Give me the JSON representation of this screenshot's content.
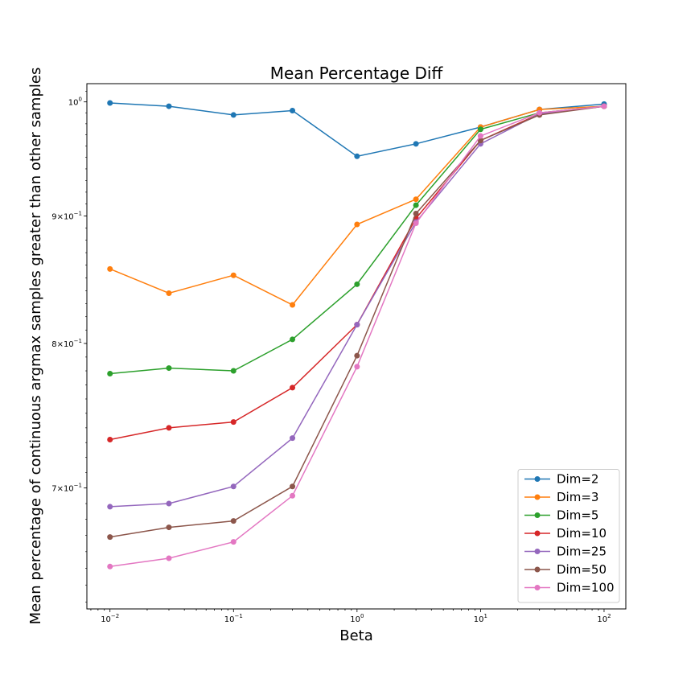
{
  "chart_data": {
    "type": "line",
    "title": "Mean Percentage Diff",
    "xlabel": "Beta",
    "ylabel": "Mean percentage of continuous argmax samples greater than other samples",
    "xscale": "log",
    "yscale": "log",
    "xlim": [
      0.0065,
      150
    ],
    "ylim": [
      0.626,
      1.017
    ],
    "x": [
      0.01,
      0.03,
      0.1,
      0.3,
      1,
      3,
      10,
      30,
      100
    ],
    "x_ticks": [
      {
        "value": 0.01,
        "base": "10",
        "exp": "−2"
      },
      {
        "value": 0.1,
        "base": "10",
        "exp": "−1"
      },
      {
        "value": 1,
        "base": "10",
        "exp": "0"
      },
      {
        "value": 10,
        "base": "10",
        "exp": "1"
      },
      {
        "value": 100,
        "base": "10",
        "exp": "2"
      }
    ],
    "y_ticks": [
      {
        "value": 0.7,
        "mantissa": "7",
        "base": "10",
        "exp": "−1"
      },
      {
        "value": 0.8,
        "mantissa": "8",
        "base": "10",
        "exp": "−1"
      },
      {
        "value": 0.9,
        "mantissa": "9",
        "base": "10",
        "exp": "−1"
      },
      {
        "value": 1.0,
        "mantissa": "",
        "base": "10",
        "exp": "0"
      }
    ],
    "legend_position": "lower-right",
    "grid": false,
    "series": [
      {
        "name": "Dim=2",
        "color": "#1f77b4",
        "values": [
          0.999,
          0.996,
          0.988,
          0.992,
          0.951,
          0.962,
          0.977,
          0.993,
          0.998
        ]
      },
      {
        "name": "Dim=3",
        "color": "#ff7f0e",
        "values": [
          0.857,
          0.838,
          0.852,
          0.829,
          0.893,
          0.914,
          0.977,
          0.993,
          0.996
        ]
      },
      {
        "name": "Dim=5",
        "color": "#2ca02c",
        "values": [
          0.778,
          0.782,
          0.78,
          0.803,
          0.845,
          0.909,
          0.975,
          0.99,
          0.996
        ]
      },
      {
        "name": "Dim=10",
        "color": "#d62728",
        "values": [
          0.732,
          0.74,
          0.744,
          0.768,
          0.814,
          0.898,
          0.965,
          0.989,
          0.996
        ]
      },
      {
        "name": "Dim=25",
        "color": "#9467bd",
        "values": [
          0.688,
          0.69,
          0.701,
          0.733,
          0.814,
          0.895,
          0.962,
          0.989,
          0.996
        ]
      },
      {
        "name": "Dim=50",
        "color": "#8c564b",
        "values": [
          0.669,
          0.675,
          0.679,
          0.701,
          0.791,
          0.902,
          0.965,
          0.988,
          0.996
        ]
      },
      {
        "name": "Dim=100",
        "color": "#e377c2",
        "values": [
          0.651,
          0.656,
          0.666,
          0.695,
          0.783,
          0.894,
          0.969,
          0.99,
          0.996
        ]
      }
    ]
  }
}
